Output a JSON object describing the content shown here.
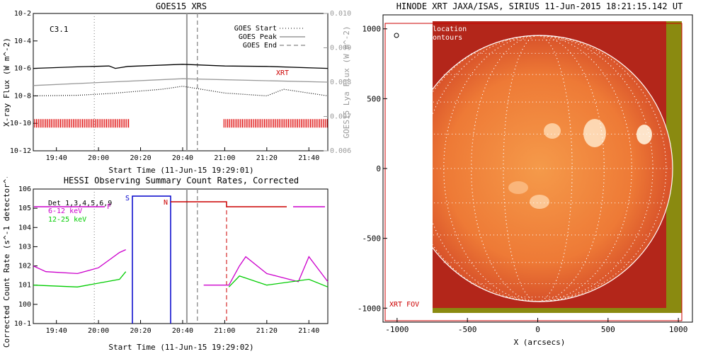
{
  "chart_data": [
    {
      "type": "line",
      "title": "GOES15 XRS",
      "xlabel": "Start Time (11-Jun-15 19:29:01)",
      "ylabel": "X-ray Flux (W m^-2)",
      "y2label": "GOES15 Lya Flux (W m^-2)",
      "x_ticks": [
        "19:40",
        "20:00",
        "20:20",
        "20:40",
        "21:00",
        "21:20",
        "21:40"
      ],
      "y_ticks": [
        "10^-2",
        "10^-4",
        "10^-6",
        "10^-8",
        "10^-10",
        "10^-12"
      ],
      "y2_ticks": [
        "0.010",
        "0.009",
        "0.008",
        "0.007",
        "0.006"
      ],
      "y_scale": "log",
      "ylim": [
        1e-12,
        0.01
      ],
      "y2lim": [
        0.006,
        0.01
      ],
      "flare_class": "C3.1",
      "legend": [
        "GOES Start",
        "GOES Peak",
        "GOES End"
      ],
      "series_label": "XRT",
      "series": [
        {
          "name": "long",
          "color": "#000000",
          "points": [
            [
              "19:29",
              1e-06
            ],
            [
              "19:50",
              1.3e-06
            ],
            [
              "20:05",
              1.5e-06
            ],
            [
              "20:08",
              1e-06
            ],
            [
              "20:14",
              1.4e-06
            ],
            [
              "20:40",
              2e-06
            ],
            [
              "21:00",
              1.5e-06
            ],
            [
              "21:20",
              1.4e-06
            ],
            [
              "21:49",
              1e-06
            ]
          ]
        },
        {
          "name": "short",
          "color": "#000000",
          "style": "dotted",
          "points": [
            [
              "19:29",
              1e-08
            ],
            [
              "19:50",
              1.1e-08
            ],
            [
              "20:06",
              1.5e-08
            ],
            [
              "20:30",
              3e-08
            ],
            [
              "20:40",
              5e-08
            ],
            [
              "21:00",
              1.6e-08
            ],
            [
              "21:20",
              1e-08
            ],
            [
              "21:28",
              3e-08
            ],
            [
              "21:49",
              1e-08
            ]
          ]
        },
        {
          "name": "lya",
          "color": "#999999",
          "axis": "y2",
          "points": [
            [
              "19:29",
              0.0079
            ],
            [
              "20:40",
              0.0081
            ],
            [
              "21:49",
              0.008
            ]
          ]
        }
      ],
      "markers": {
        "start": "19:58",
        "peak": "20:42",
        "end": "20:47"
      },
      "xrt_ticks": [
        {
          "from": "19:29",
          "to": "20:15"
        },
        {
          "from": "20:59",
          "to": "21:49"
        }
      ]
    },
    {
      "type": "line",
      "title": "HESSI Observing Summary Count Rates, Corrected",
      "xlabel": "Start Time (11-Jun-15 19:29:02)",
      "ylabel": "Corrected Count Rate (s^-1 detector^-1)",
      "x_ticks": [
        "19:40",
        "20:00",
        "20:20",
        "20:40",
        "21:00",
        "21:20",
        "21:40"
      ],
      "y_ticks": [
        "10^6",
        "10^5",
        "10^4",
        "10^3",
        "10^2",
        "10^1",
        "10^0",
        "10^-1"
      ],
      "y_scale": "log",
      "ylim": [
        0.1,
        1000000.0
      ],
      "detectors": "Det 1,3,4,5,6,9",
      "series": [
        {
          "name": "6-12 keV",
          "color": "#cc00cc",
          "points": [
            [
              "19:29",
              100
            ],
            [
              "19:35",
              50
            ],
            [
              "19:50",
              40
            ],
            [
              "20:00",
              80
            ],
            [
              "20:05",
              200
            ],
            [
              "20:10",
              500
            ],
            [
              "20:13",
              700
            ],
            [
              "20:33",
              10
            ],
            [
              "20:50",
              10
            ],
            [
              "21:02",
              10
            ],
            [
              "21:07",
              100
            ],
            [
              "21:10",
              300
            ],
            [
              "21:20",
              40
            ],
            [
              "21:35",
              15
            ],
            [
              "21:40",
              300
            ],
            [
              "21:49",
              15
            ]
          ]
        },
        {
          "name": "12-25 keV",
          "color": "#00cc00",
          "points": [
            [
              "19:29",
              10
            ],
            [
              "19:50",
              8
            ],
            [
              "20:10",
              20
            ],
            [
              "20:13",
              50
            ],
            [
              "20:33",
              8
            ],
            [
              "21:02",
              8
            ],
            [
              "21:07",
              30
            ],
            [
              "21:20",
              10
            ],
            [
              "21:40",
              20
            ],
            [
              "21:49",
              8
            ]
          ]
        }
      ],
      "state_flags": [
        "F",
        "S",
        "N"
      ],
      "markers": {
        "start": "19:58",
        "peak": "20:42",
        "end": "20:47"
      }
    },
    {
      "type": "heatmap",
      "title": "HINODE XRT JAXA/ISAS, SIRIUS 11-Jun-2015 18:21:15.142 UT",
      "xlabel": "X (arcsecs)",
      "ylabel": "",
      "x_ticks": [
        "-1000",
        "-500",
        "0",
        "500",
        "1000"
      ],
      "y_ticks": [
        "1000",
        "500",
        "0",
        "-500",
        "-1000"
      ],
      "xlim": [
        -1100,
        1100
      ],
      "ylim": [
        -1100,
        1100
      ],
      "legend_text": [
        "location",
        "ontours"
      ],
      "fov_label": "XRT FOV",
      "limb_radius_arcsec": 945
    }
  ]
}
